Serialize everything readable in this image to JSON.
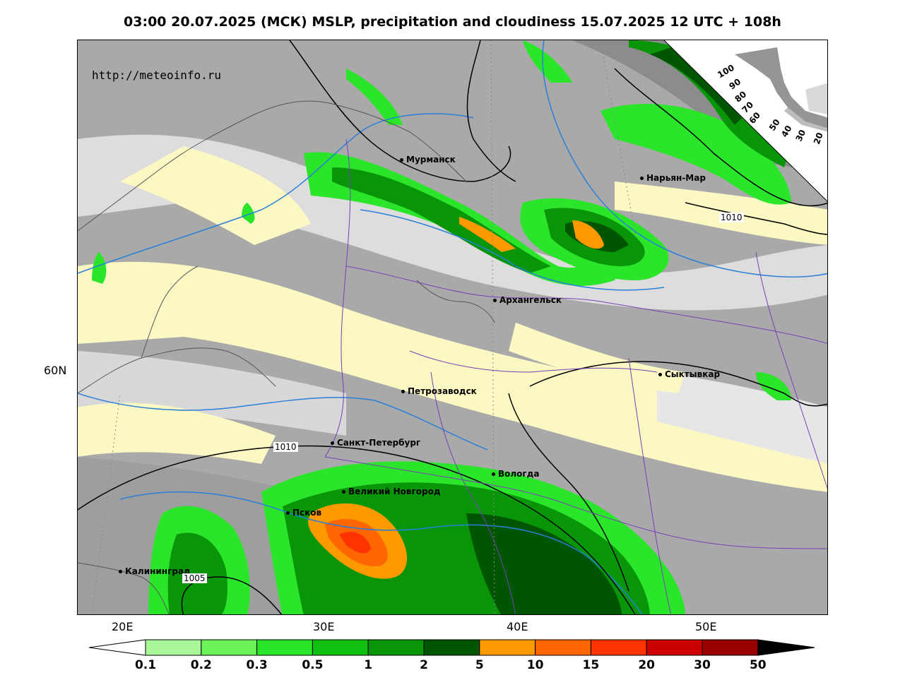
{
  "title": "03:00 20.07.2025 (МСК) MSLP, precipitation and cloudiness 15.07.2025 12 UTC + 108h",
  "website": "http://meteoinfo.ru",
  "cities": [
    {
      "name": "Мурманск"
    },
    {
      "name": "Нарьян-Мар"
    },
    {
      "name": "Архангельск"
    },
    {
      "name": "Сыктывкар"
    },
    {
      "name": "Петрозаводск"
    },
    {
      "name": "Санкт-Петербург"
    },
    {
      "name": "Вологда"
    },
    {
      "name": "Великий Новгород"
    },
    {
      "name": "Псков"
    },
    {
      "name": "Калининград"
    }
  ],
  "isobar_labels": [
    "1010",
    "1010",
    "1005"
  ],
  "longitude_labels": [
    "20E",
    "30E",
    "40E",
    "50E"
  ],
  "latitude_labels": [
    "60N"
  ],
  "cloud_scale_labels": [
    "100",
    "90",
    "80",
    "70",
    "60",
    "50",
    "40",
    "30",
    "20"
  ],
  "legend": {
    "labels": [
      "0.1",
      "0.2",
      "0.3",
      "0.5",
      "1",
      "2",
      "5",
      "10",
      "15",
      "20",
      "30",
      "50"
    ],
    "colors": [
      "#a8f89a",
      "#6ef25a",
      "#2be52b",
      "#10bf10",
      "#089608",
      "#005500",
      "#ff9900",
      "#ff6600",
      "#ff3300",
      "#cc0000",
      "#990000"
    ]
  },
  "colors": {
    "isobar": "#000000",
    "isotherm": "#2a7fd8",
    "borders": "#7a3fb8",
    "clear_sky": "#fbf8c4"
  }
}
